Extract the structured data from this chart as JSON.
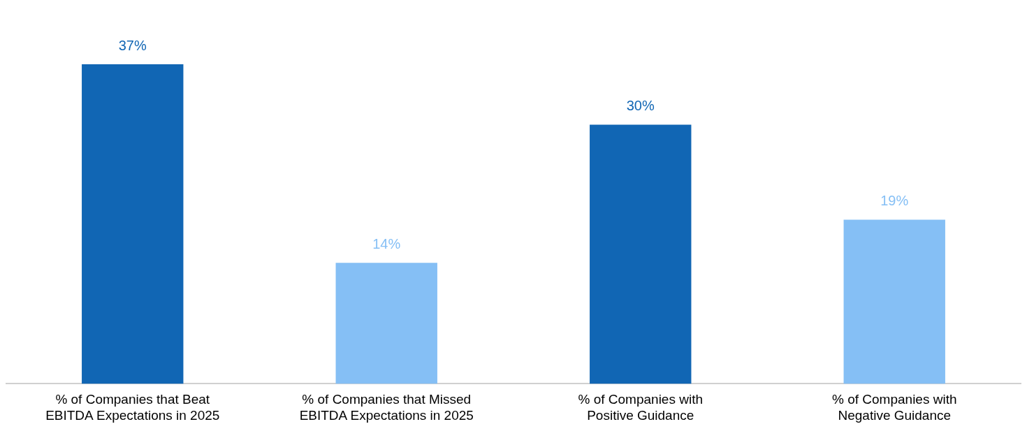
{
  "chart_data": {
    "type": "bar",
    "categories": [
      "% of Companies that Beat EBITDA Expectations in 2025",
      "% of Companies that Missed EBITDA Expectations in 2025",
      "% of Companies with Positive Guidance",
      "% of Companies with Negative Guidance"
    ],
    "values": [
      37,
      14,
      30,
      19
    ],
    "colors": [
      "#1166b4",
      "#85bff5",
      "#1166b4",
      "#85bff5"
    ],
    "value_labels": [
      "37%",
      "14%",
      "30%",
      "19%"
    ],
    "grid": false,
    "legend": false
  }
}
